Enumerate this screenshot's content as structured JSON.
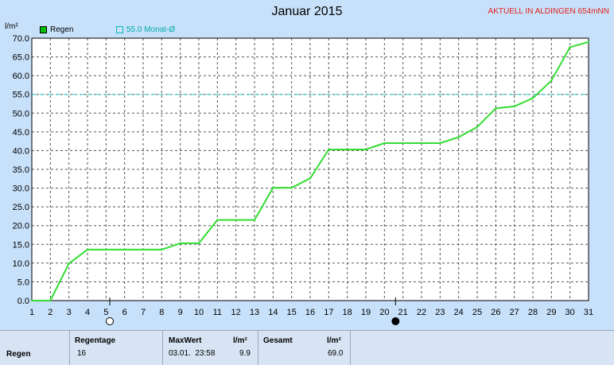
{
  "header": {
    "title": "Januar 2015",
    "station": "AKTUELL IN ALDINGEN 654mNN",
    "unit": "l/m²"
  },
  "legend": {
    "rain_label": "Regen",
    "avg_label": "55.0 Monat-Ø"
  },
  "colors": {
    "rain_line": "#33dd33",
    "avg_line": "#33cccc",
    "plot_bg": "#ffffff",
    "grid": "#555555"
  },
  "chart_data": {
    "type": "line",
    "x": [
      1,
      2,
      3,
      4,
      5,
      6,
      7,
      8,
      9,
      10,
      11,
      12,
      13,
      14,
      15,
      16,
      17,
      18,
      19,
      20,
      21,
      22,
      23,
      24,
      25,
      26,
      27,
      28,
      29,
      30,
      31
    ],
    "series": [
      {
        "name": "Regen",
        "values": [
          0,
          0,
          9.9,
          13.6,
          13.6,
          13.6,
          13.6,
          13.6,
          15.3,
          15.3,
          21.5,
          21.5,
          21.5,
          30.1,
          30.1,
          32.6,
          40.3,
          40.3,
          40.3,
          42.0,
          42.0,
          42.0,
          42.0,
          43.6,
          46.3,
          51.3,
          51.8,
          54.0,
          58.7,
          67.6,
          69.0
        ]
      }
    ],
    "reference_line": {
      "label": "55.0 Monat-Ø",
      "value": 55.0
    },
    "ylim": [
      0,
      70
    ],
    "yticks": [
      0,
      5,
      10,
      15,
      20,
      25,
      30,
      35,
      40,
      45,
      50,
      55,
      60,
      65,
      70
    ],
    "ytick_labels": [
      "0.0",
      "5.0",
      "10.0",
      "15.0",
      "20.0",
      "25.0",
      "30.0",
      "35.0",
      "40.0",
      "45.0",
      "50.0",
      "55.0",
      "60.0",
      "65.0",
      "70.0"
    ],
    "xlim": [
      1,
      31
    ],
    "xticks": [
      1,
      2,
      3,
      4,
      5,
      6,
      7,
      8,
      9,
      10,
      11,
      12,
      13,
      14,
      15,
      16,
      17,
      18,
      19,
      20,
      21,
      22,
      23,
      24,
      25,
      26,
      27,
      28,
      29,
      30,
      31
    ],
    "grid": true,
    "moon_phases": [
      {
        "day": 5.2,
        "phase": "full-moon"
      },
      {
        "day": 20.6,
        "phase": "new-moon"
      }
    ]
  },
  "stats": {
    "row_label": "Regen",
    "regentage_label": "Regentage",
    "regentage_value": "16",
    "maxwert_label": "MaxWert",
    "maxwert_unit": "l/m²",
    "maxwert_datetime": "03.01.  23:58",
    "maxwert_value": "9.9",
    "gesamt_label": "Gesamt",
    "gesamt_unit": "l/m²",
    "gesamt_value": "69.0"
  }
}
